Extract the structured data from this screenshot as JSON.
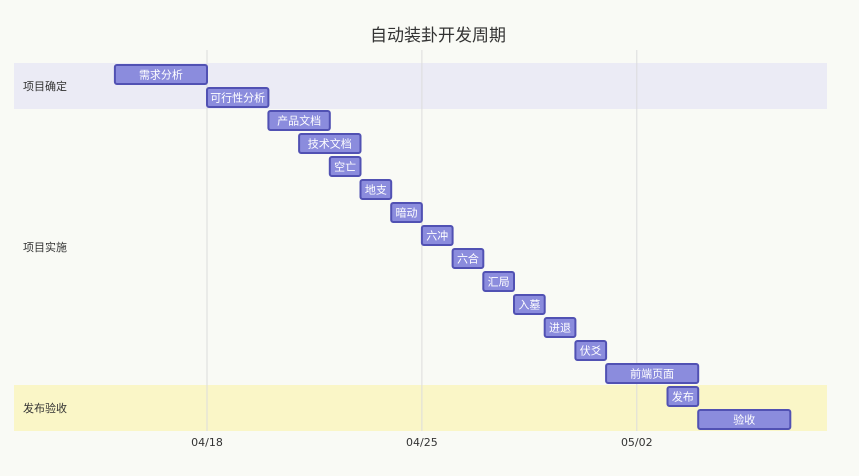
{
  "chart_data": {
    "type": "gantt",
    "title": "自动装卦开发周期",
    "x_ticks": [
      "04/18",
      "04/25",
      "05/02"
    ],
    "colors": {
      "background": "#f9faf5",
      "section_band_1": "#ebebf5",
      "section_band_2": "#f9faf5",
      "section_band_3": "#faf6c7",
      "task_fill": "#8b8cdd",
      "task_border": "#5151b3",
      "grid": "#dcdcdc",
      "text": "#333333",
      "task_text": "#ffffff"
    },
    "sections": [
      {
        "name": "项目确定",
        "tasks": [
          {
            "name": "需求分析",
            "start": "2023-04-15",
            "end": "2023-04-18"
          },
          {
            "name": "可行性分析",
            "start": "2023-04-18",
            "end": "2023-04-20"
          }
        ]
      },
      {
        "name": "项目实施",
        "tasks": [
          {
            "name": "产品文档",
            "start": "2023-04-20",
            "end": "2023-04-22"
          },
          {
            "name": "技术文档",
            "start": "2023-04-21",
            "end": "2023-04-23"
          },
          {
            "name": "空亡",
            "start": "2023-04-22",
            "end": "2023-04-23"
          },
          {
            "name": "地支",
            "start": "2023-04-23",
            "end": "2023-04-24"
          },
          {
            "name": "暗动",
            "start": "2023-04-24",
            "end": "2023-04-25"
          },
          {
            "name": "六冲",
            "start": "2023-04-25",
            "end": "2023-04-26"
          },
          {
            "name": "六合",
            "start": "2023-04-26",
            "end": "2023-04-27"
          },
          {
            "name": "汇局",
            "start": "2023-04-27",
            "end": "2023-04-28"
          },
          {
            "name": "入墓",
            "start": "2023-04-28",
            "end": "2023-04-29"
          },
          {
            "name": "进退",
            "start": "2023-04-29",
            "end": "2023-04-30"
          },
          {
            "name": "伏爻",
            "start": "2023-04-30",
            "end": "2023-05-01"
          },
          {
            "name": "前端页面",
            "start": "2023-05-01",
            "end": "2023-05-04"
          }
        ]
      },
      {
        "name": "发布验收",
        "tasks": [
          {
            "name": "发布",
            "start": "2023-05-03",
            "end": "2023-05-04"
          },
          {
            "name": "验收",
            "start": "2023-05-04",
            "end": "2023-05-07"
          }
        ]
      }
    ]
  }
}
